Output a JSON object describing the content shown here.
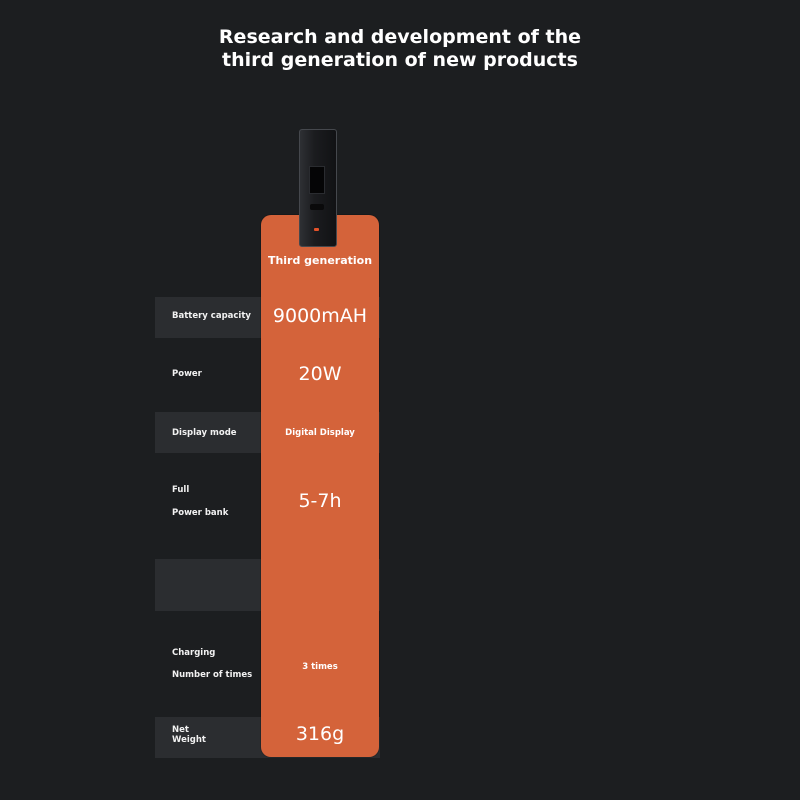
{
  "title": {
    "line1": "Research and development of the",
    "line2": "third generation of new products"
  },
  "column": {
    "header": "Third generation"
  },
  "rows": [
    {
      "label": "Battery capacity",
      "value": "9000mAH"
    },
    {
      "label": "Power",
      "value": "20W"
    },
    {
      "label": "Display mode",
      "value": "Digital Display"
    },
    {
      "label_line1": "Full",
      "label_line2": "Power bank",
      "value": "5-7h"
    },
    {
      "label_line1": "Charging",
      "label_line2": "Number of times",
      "value": "3 times"
    },
    {
      "label_line1": "Net",
      "label_line2": "Weight",
      "value": "316g"
    }
  ],
  "colors": {
    "background": "#1c1e20",
    "row_band": "#2b2d30",
    "highlight": "#d4633a"
  }
}
